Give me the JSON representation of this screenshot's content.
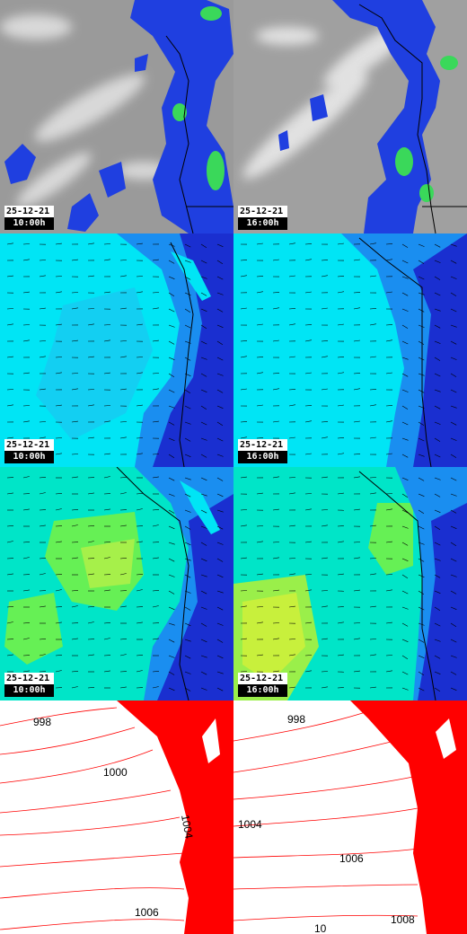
{
  "panels": [
    {
      "id": "sat-1",
      "kind": "satellite",
      "date": "25-12-21",
      "time": "10:00h"
    },
    {
      "id": "sat-2",
      "kind": "satellite",
      "date": "25-12-21",
      "time": "16:00h"
    },
    {
      "id": "windA-1",
      "kind": "wind-field",
      "palette": "cyan",
      "date": "25-12-21",
      "time": "10:00h"
    },
    {
      "id": "windA-2",
      "kind": "wind-field",
      "palette": "cyan",
      "date": "25-12-21",
      "time": "16:00h"
    },
    {
      "id": "windB-1",
      "kind": "wind-field",
      "palette": "green",
      "date": "25-12-21",
      "time": "10:00h"
    },
    {
      "id": "windB-2",
      "kind": "wind-field",
      "palette": "green",
      "date": "25-12-21",
      "time": "16:00h"
    },
    {
      "id": "press-1",
      "kind": "isobars",
      "labels": [
        "998",
        "1000",
        "1004",
        "1006"
      ]
    },
    {
      "id": "press-2",
      "kind": "isobars",
      "labels": [
        "998",
        "1004",
        "1006",
        "10",
        "1008"
      ]
    }
  ],
  "colors": {
    "satellite_base": "#9a9a9a",
    "precip_blue": "#1f3fe0",
    "precip_green": "#55e055",
    "wind_cyan": "#00e5f5",
    "wind_blue": "#1a2fd0",
    "wind_green": "#66f055",
    "isobar_red": "#ff0000"
  }
}
